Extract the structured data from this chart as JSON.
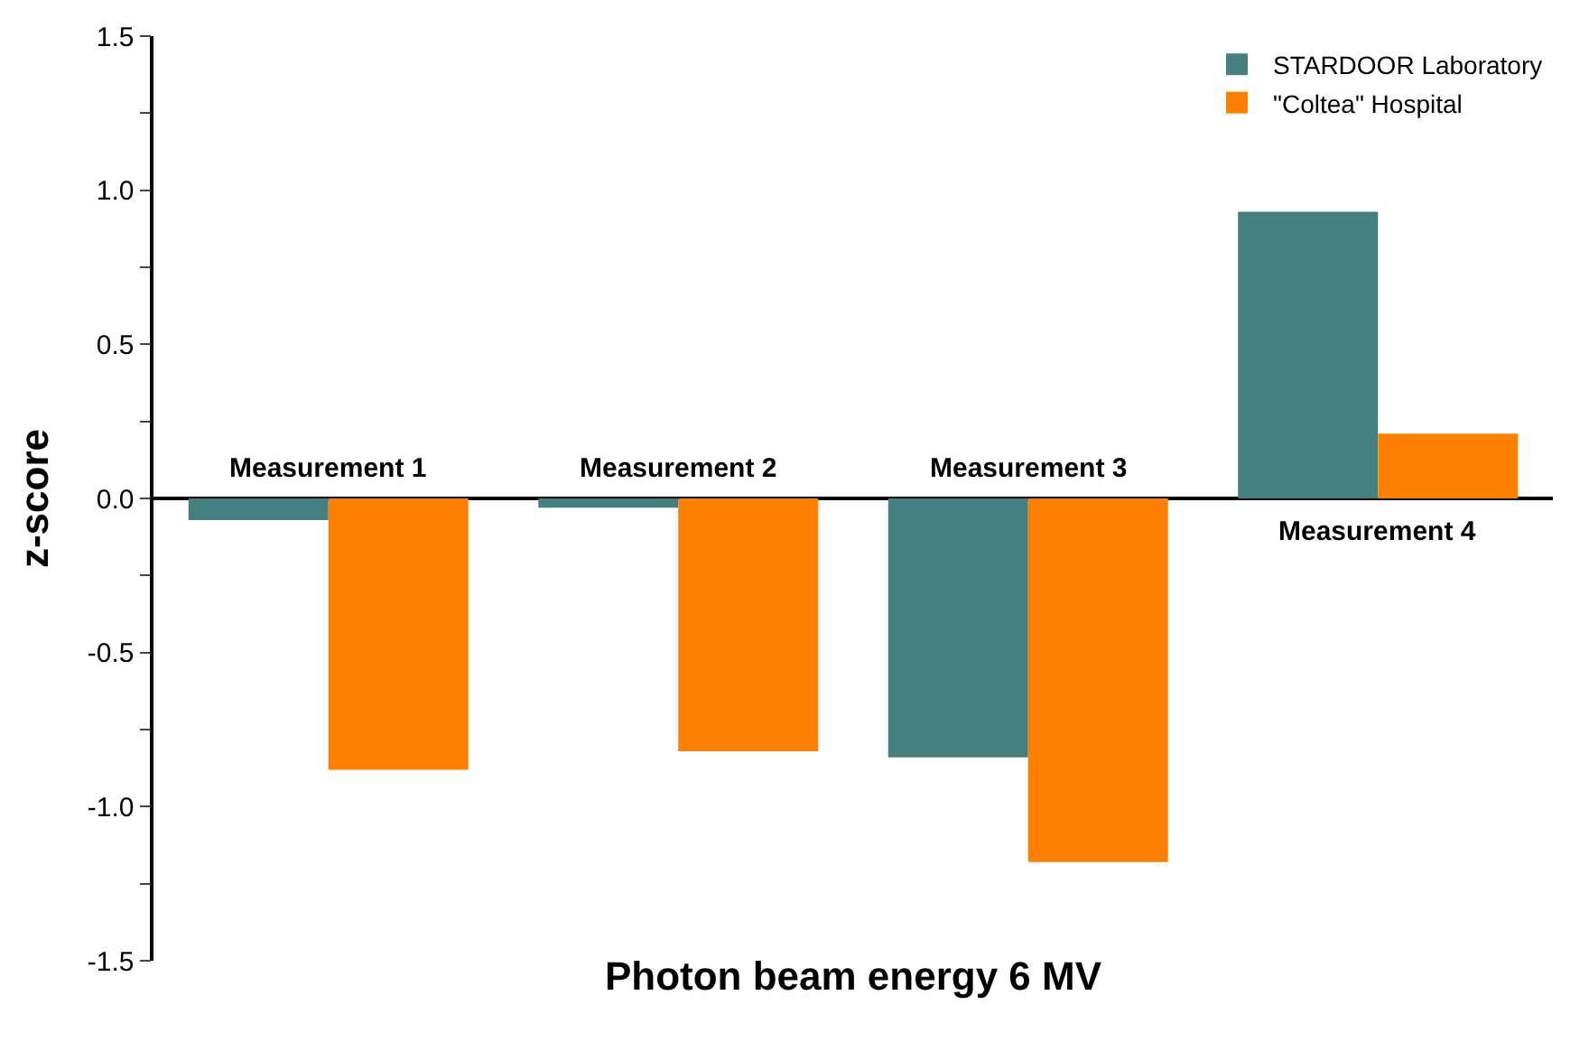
{
  "chart_data": {
    "type": "bar",
    "xlabel": "Photon beam energy 6 MV",
    "ylabel": "z-score",
    "categories": [
      "Measurement 1",
      "Measurement 2",
      "Measurement 3",
      "Measurement 4"
    ],
    "series": [
      {
        "name": "STARDOOR Laboratory",
        "color": "#44807f",
        "values": [
          -0.07,
          -0.03,
          -0.84,
          0.93
        ]
      },
      {
        "name": "\"Coltea\" Hospital",
        "color": "#ff8000",
        "values": [
          -0.88,
          -0.82,
          -1.18,
          0.21
        ]
      }
    ],
    "ylim": [
      -1.5,
      1.5
    ],
    "yticks": [
      -1.5,
      {
        "value": -1.25,
        "label": null
      },
      {
        "value": -1,
        "label": "-1.0"
      },
      {
        "value": -0.75,
        "label": null
      },
      -0.5,
      {
        "value": -0.25,
        "label": null
      },
      {
        "value": 0,
        "label": "0.0"
      },
      {
        "value": 0.25,
        "label": null
      },
      0.5,
      {
        "value": 0.75,
        "label": null
      },
      {
        "value": 1,
        "label": "1.0"
      },
      {
        "value": 1.25,
        "label": null
      },
      1.5
    ],
    "legend": "top right"
  }
}
